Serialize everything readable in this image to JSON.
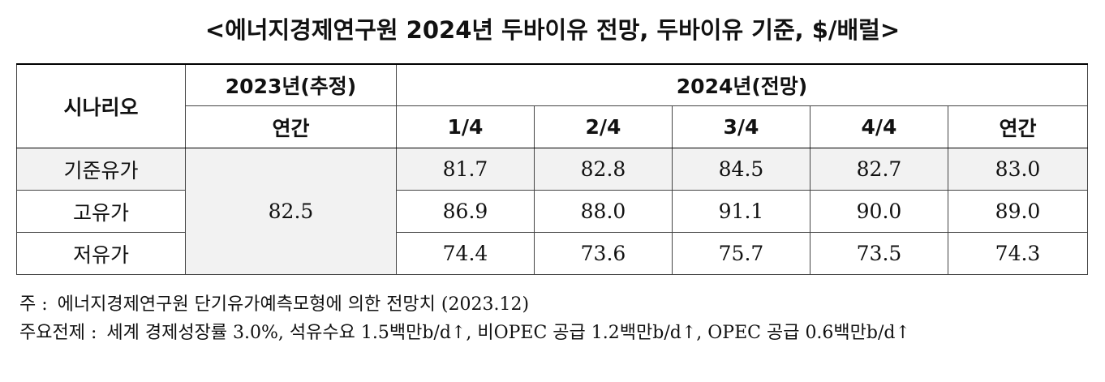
{
  "title": "<에너지경제연구원 2024년 두바이유 전망, 두바이유 기준, $/배럴>",
  "table": {
    "header": {
      "scenario": "시나리오",
      "year2023": "2023년(추정)",
      "year2024": "2024년(전망)",
      "subcolumns": [
        "연간",
        "1/4",
        "2/4",
        "3/4",
        "4/4",
        "연간"
      ]
    },
    "annual_2023": "82.5",
    "rows": [
      {
        "scenario": "기준유가",
        "values": [
          "81.7",
          "82.8",
          "84.5",
          "82.7",
          "83.0"
        ]
      },
      {
        "scenario": "고유가",
        "values": [
          "86.9",
          "88.0",
          "91.1",
          "90.0",
          "89.0"
        ]
      },
      {
        "scenario": "저유가",
        "values": [
          "74.4",
          "73.6",
          "75.7",
          "73.5",
          "74.3"
        ]
      }
    ]
  },
  "notes": [
    {
      "label": "주 :",
      "text": "에너지경제연구원 단기유가예측모형에 의한 전망치 (2023.12)"
    },
    {
      "label": "주요전제 :",
      "text": "세계 경제성장률 3.0%, 석유수요 1.5백만b/d↑, 비OPEC 공급 1.2백만b/d↑, OPEC 공급 0.6백만b/d↑"
    }
  ]
}
